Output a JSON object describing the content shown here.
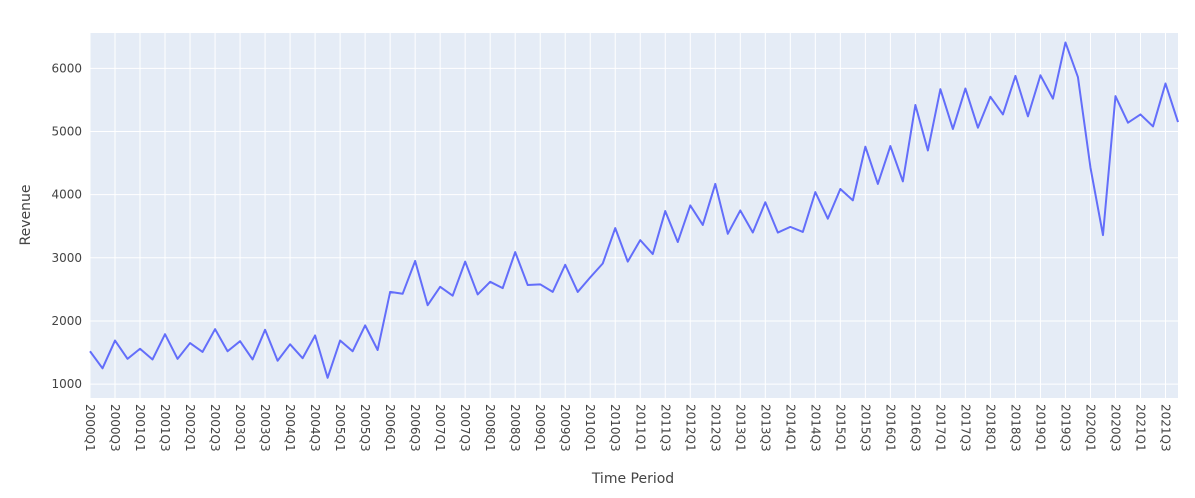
{
  "chart_data": {
    "type": "line",
    "title": "",
    "xlabel": "Time Period",
    "ylabel": "Revenue",
    "ylim": [
      780,
      6560
    ],
    "yticks": [
      1000,
      2000,
      3000,
      4000,
      5000,
      6000
    ],
    "grid": true,
    "legend": "none",
    "colors": {
      "plot_bg": "#e5ecf6",
      "line": "#636efa",
      "grid": "#ffffff",
      "text": "#444444"
    },
    "x": [
      "2000Q1",
      "2000Q2",
      "2000Q3",
      "2000Q4",
      "2001Q1",
      "2001Q2",
      "2001Q3",
      "2001Q4",
      "2002Q1",
      "2002Q2",
      "2002Q3",
      "2002Q4",
      "2003Q1",
      "2003Q2",
      "2003Q3",
      "2003Q4",
      "2004Q1",
      "2004Q2",
      "2004Q3",
      "2004Q4",
      "2005Q1",
      "2005Q2",
      "2005Q3",
      "2005Q4",
      "2006Q1",
      "2006Q2",
      "2006Q3",
      "2006Q4",
      "2007Q1",
      "2007Q2",
      "2007Q3",
      "2007Q4",
      "2008Q1",
      "2008Q2",
      "2008Q3",
      "2008Q4",
      "2009Q1",
      "2009Q2",
      "2009Q3",
      "2009Q4",
      "2010Q1",
      "2010Q2",
      "2010Q3",
      "2010Q4",
      "2011Q1",
      "2011Q2",
      "2011Q3",
      "2011Q4",
      "2012Q1",
      "2012Q2",
      "2012Q3",
      "2012Q4",
      "2013Q1",
      "2013Q2",
      "2013Q3",
      "2013Q4",
      "2014Q1",
      "2014Q2",
      "2014Q3",
      "2014Q4",
      "2015Q1",
      "2015Q2",
      "2015Q3",
      "2015Q4",
      "2016Q1",
      "2016Q2",
      "2016Q3",
      "2016Q4",
      "2017Q1",
      "2017Q2",
      "2017Q3",
      "2017Q4",
      "2018Q1",
      "2018Q2",
      "2018Q3",
      "2018Q4",
      "2019Q1",
      "2019Q2",
      "2019Q3",
      "2019Q4",
      "2020Q1",
      "2020Q2",
      "2020Q3",
      "2020Q4",
      "2021Q1",
      "2021Q2",
      "2021Q3",
      "2021Q4"
    ],
    "values": [
      1520,
      1250,
      1690,
      1400,
      1560,
      1390,
      1790,
      1400,
      1650,
      1510,
      1870,
      1520,
      1680,
      1390,
      1860,
      1370,
      1630,
      1410,
      1770,
      1100,
      1690,
      1520,
      1930,
      1540,
      2460,
      2430,
      2950,
      2250,
      2540,
      2400,
      2940,
      2420,
      2620,
      2520,
      3090,
      2570,
      2580,
      2460,
      2890,
      2460,
      2690,
      2910,
      3470,
      2940,
      3280,
      3060,
      3740,
      3250,
      3830,
      3520,
      4170,
      3380,
      3750,
      3400,
      3880,
      3400,
      3490,
      3410,
      4040,
      3620,
      4090,
      3910,
      4760,
      4170,
      4770,
      4210,
      5420,
      4700,
      5670,
      5040,
      5680,
      5060,
      5550,
      5270,
      5880,
      5240,
      5890,
      5520,
      6410,
      5860,
      4430,
      3360,
      5560,
      5140,
      5270,
      5080,
      5760,
      5150
    ],
    "xtick_labels": [
      "2000Q1",
      "2000Q3",
      "2001Q1",
      "2001Q3",
      "2002Q1",
      "2002Q3",
      "2003Q1",
      "2003Q3",
      "2004Q1",
      "2004Q3",
      "2005Q1",
      "2005Q3",
      "2006Q1",
      "2006Q3",
      "2007Q1",
      "2007Q3",
      "2008Q1",
      "2008Q3",
      "2009Q1",
      "2009Q3",
      "2010Q1",
      "2010Q3",
      "2011Q1",
      "2011Q3",
      "2012Q1",
      "2012Q3",
      "2013Q1",
      "2013Q3",
      "2014Q1",
      "2014Q3",
      "2015Q1",
      "2015Q3",
      "2016Q1",
      "2016Q3",
      "2017Q1",
      "2017Q3",
      "2018Q1",
      "2018Q3",
      "2019Q1",
      "2019Q3",
      "2020Q1",
      "2020Q3",
      "2021Q1",
      "2021Q3"
    ]
  }
}
